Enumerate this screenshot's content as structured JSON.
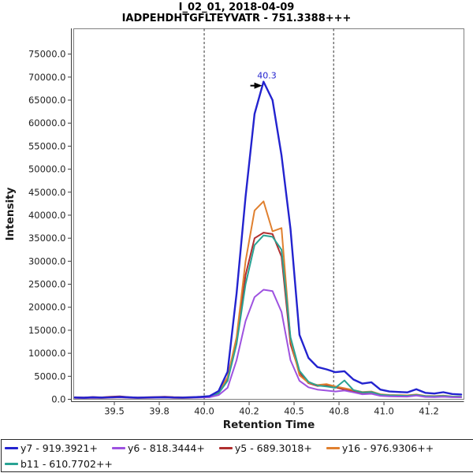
{
  "titles": {
    "line1": "I_02_01, 2018-04-09",
    "line2": "IADPEHDHTGFLTEYVATR - 751.3388+++"
  },
  "chart_data": {
    "type": "line",
    "title": "I_02_01, 2018-04-09 / IADPEHDHTGFLTEYVATR - 751.3388+++",
    "xlabel": "Retention Time",
    "ylabel": "Intensity",
    "xlim": [
      39.274,
      41.445
    ],
    "ylim": [
      0,
      80500
    ],
    "grid": false,
    "legend_position": "bottom",
    "x_ticks": {
      "values": [
        39.5,
        39.75,
        40.0,
        40.25,
        40.5,
        40.75,
        41.0,
        41.25
      ],
      "labels": [
        "39.5",
        "39.8",
        "40.0",
        "40.2",
        "40.5",
        "40.8",
        "41.0",
        "41.2"
      ]
    },
    "y_ticks": {
      "values": [
        0,
        5000,
        10000,
        15000,
        20000,
        25000,
        30000,
        35000,
        40000,
        45000,
        50000,
        55000,
        60000,
        65000,
        70000,
        75000
      ],
      "labels": [
        "0.0",
        "5000.0",
        "10000.0",
        "15000.0",
        "20000.0",
        "25000.0",
        "30000.0",
        "35000.0",
        "40000.0",
        "45000.0",
        "50000.0",
        "55000.0",
        "60000.0",
        "65000.0",
        "70000.0",
        "75000.0"
      ]
    },
    "peak_boundaries": [
      40.0,
      40.72
    ],
    "boundary_color": "#333333",
    "annotation": {
      "label": "40.3",
      "time": 40.34,
      "intensity": 69000,
      "arrow_color": "#000000"
    },
    "x": [
      39.28,
      39.33,
      39.38,
      39.43,
      39.48,
      39.53,
      39.58,
      39.63,
      39.68,
      39.73,
      39.78,
      39.83,
      39.88,
      39.93,
      39.98,
      40.03,
      40.08,
      40.13,
      40.18,
      40.23,
      40.28,
      40.33,
      40.38,
      40.43,
      40.48,
      40.53,
      40.58,
      40.63,
      40.68,
      40.73,
      40.78,
      40.83,
      40.88,
      40.93,
      40.98,
      41.03,
      41.08,
      41.13,
      41.18,
      41.23,
      41.28,
      41.33,
      41.38,
      41.43
    ],
    "series": [
      {
        "name": "y7 - 919.3921+",
        "color": "#2323cf",
        "values": [
          400,
          350,
          420,
          380,
          450,
          520,
          420,
          360,
          400,
          430,
          460,
          400,
          380,
          430,
          520,
          700,
          1800,
          6000,
          23000,
          44000,
          62000,
          69000,
          65000,
          53000,
          37000,
          14000,
          9000,
          7000,
          6500,
          5900,
          6100,
          4300,
          3400,
          3700,
          2100,
          1700,
          1600,
          1500,
          2200,
          1400,
          1250,
          1550,
          1150,
          1050
        ]
      },
      {
        "name": "y6 - 818.3444+",
        "color": "#9e52e0",
        "values": [
          300,
          260,
          330,
          290,
          360,
          420,
          340,
          280,
          320,
          350,
          380,
          320,
          300,
          340,
          400,
          450,
          900,
          2500,
          8500,
          17000,
          22200,
          23800,
          23500,
          19000,
          8500,
          4000,
          2600,
          2100,
          1900,
          1700,
          1900,
          1500,
          1100,
          1200,
          750,
          650,
          600,
          580,
          800,
          520,
          480,
          560,
          450,
          420
        ]
      },
      {
        "name": "y5 - 689.3018+",
        "color": "#b02f2f",
        "values": [
          450,
          380,
          500,
          420,
          550,
          650,
          480,
          400,
          450,
          500,
          560,
          460,
          420,
          480,
          550,
          600,
          1500,
          4300,
          12500,
          27000,
          35000,
          36200,
          35900,
          31000,
          12000,
          5800,
          3500,
          2900,
          3100,
          2600,
          2100,
          1800,
          1400,
          1500,
          950,
          800,
          750,
          700,
          900,
          620,
          580,
          680,
          540,
          500
        ]
      },
      {
        "name": "y16 - 976.9306++",
        "color": "#e0802f",
        "values": [
          300,
          260,
          320,
          280,
          350,
          420,
          330,
          270,
          310,
          340,
          370,
          300,
          280,
          330,
          430,
          600,
          1600,
          4800,
          13500,
          30000,
          41000,
          43000,
          36500,
          37200,
          13000,
          5200,
          3600,
          3100,
          3300,
          2800,
          2400,
          2000,
          1600,
          1700,
          1100,
          950,
          900,
          850,
          1050,
          750,
          700,
          800,
          620,
          580
        ]
      },
      {
        "name": "b11 - 610.7702++",
        "color": "#29a394",
        "values": [
          350,
          300,
          370,
          330,
          400,
          470,
          380,
          310,
          350,
          380,
          410,
          350,
          330,
          380,
          460,
          500,
          1300,
          4000,
          12000,
          25000,
          33500,
          35600,
          35300,
          32500,
          13500,
          6200,
          3800,
          3000,
          2800,
          2500,
          4100,
          2000,
          1500,
          1600,
          1000,
          850,
          800,
          750,
          950,
          680,
          620,
          720,
          580,
          530
        ]
      }
    ],
    "draw_order": [
      2,
      3,
      4,
      1,
      0
    ],
    "axis_color": "#3c3c3c",
    "border_color": "#808080",
    "tick_label_color": "#222222"
  }
}
